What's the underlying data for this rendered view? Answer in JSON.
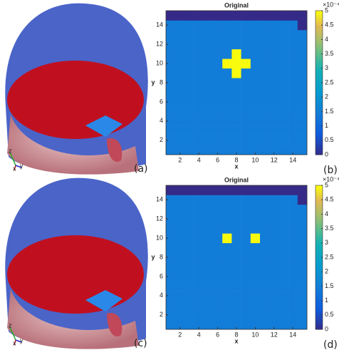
{
  "images": [
    {
      "panel_label": "(a)",
      "axis_letters": [
        "z",
        "x",
        "y"
      ]
    },
    {
      "panel_label": "(c)",
      "axis_letters": [
        "z",
        "x",
        "y"
      ]
    }
  ],
  "chart_data": [
    {
      "type": "heatmap",
      "title": "Original",
      "x_label": "x",
      "y_label": "y",
      "panel_label": "(b)",
      "colormap": "parula",
      "xlim": [
        0.5,
        15.5
      ],
      "ylim": [
        0.5,
        15.5
      ],
      "xticks": [
        2,
        4,
        6,
        8,
        10,
        12,
        14
      ],
      "yticks": [
        2,
        4,
        6,
        8,
        10,
        12,
        14
      ],
      "clim": [
        0,
        5
      ],
      "colorbar_ticks": [
        0,
        0.5,
        1,
        1.5,
        2,
        2.5,
        3,
        3.5,
        4,
        4.5,
        5
      ],
      "colorbar_label": "×10⁻⁴",
      "z": [
        [
          1.5,
          1.5,
          1.5,
          1.5,
          1.5,
          1.5,
          1.5,
          1.5,
          1.5,
          1.5,
          1.5,
          1.5,
          1.5,
          1.5,
          1.5
        ],
        [
          1.5,
          1.5,
          1.5,
          1.5,
          1.5,
          1.5,
          1.5,
          1.5,
          1.5,
          1.5,
          1.5,
          1.5,
          1.5,
          1.5,
          1.5
        ],
        [
          1.5,
          1.5,
          1.5,
          1.5,
          1.5,
          1.5,
          1.5,
          1.5,
          1.5,
          1.5,
          1.5,
          1.5,
          1.5,
          1.5,
          1.5
        ],
        [
          1.5,
          1.5,
          1.5,
          1.5,
          1.5,
          1.5,
          1.5,
          1.5,
          1.5,
          1.5,
          1.5,
          1.5,
          1.5,
          1.5,
          1.5
        ],
        [
          1.5,
          1.5,
          1.5,
          1.5,
          1.5,
          1.5,
          1.5,
          1.5,
          1.5,
          1.5,
          1.5,
          1.5,
          1.5,
          1.5,
          1.5
        ],
        [
          1.5,
          1.5,
          1.5,
          1.5,
          1.5,
          1.5,
          1.5,
          1.5,
          1.5,
          1.5,
          1.5,
          1.5,
          1.5,
          1.5,
          1.5
        ],
        [
          1.5,
          1.5,
          1.5,
          1.5,
          1.5,
          1.5,
          1.5,
          1.5,
          1.5,
          1.5,
          1.5,
          1.5,
          1.5,
          1.5,
          1.5
        ],
        [
          1.5,
          1.5,
          1.5,
          1.5,
          1.5,
          1.5,
          1.5,
          1.5,
          1.5,
          1.5,
          1.5,
          1.5,
          1.5,
          1.5,
          1.5
        ],
        [
          1.5,
          1.5,
          1.5,
          1.5,
          1.5,
          1.5,
          1.5,
          5,
          1.5,
          1.5,
          1.5,
          1.5,
          1.5,
          1.5,
          1.5
        ],
        [
          1.5,
          1.5,
          1.5,
          1.5,
          1.5,
          1.5,
          5,
          5,
          5,
          1.5,
          1.5,
          1.5,
          1.5,
          1.5,
          1.5
        ],
        [
          1.5,
          1.5,
          1.5,
          1.5,
          1.5,
          1.5,
          1.5,
          5,
          1.5,
          1.5,
          1.5,
          1.5,
          1.5,
          1.5,
          1.5
        ],
        [
          1.5,
          1.5,
          1.5,
          1.5,
          1.5,
          1.5,
          1.5,
          1.5,
          1.5,
          1.5,
          1.5,
          1.5,
          1.5,
          1.5,
          1.5
        ],
        [
          1.5,
          1.5,
          1.5,
          1.5,
          1.5,
          1.5,
          1.5,
          1.5,
          1.5,
          1.5,
          1.5,
          1.5,
          1.5,
          1.5,
          1.5
        ],
        [
          1.5,
          1.5,
          1.5,
          1.5,
          1.5,
          1.5,
          1.5,
          1.5,
          1.5,
          1.5,
          1.5,
          1.5,
          1.5,
          1.5,
          0
        ],
        [
          0,
          0,
          0,
          0,
          0,
          0,
          0,
          0,
          0,
          0,
          0,
          0,
          0,
          0,
          0
        ]
      ]
    },
    {
      "type": "heatmap",
      "title": "Original",
      "x_label": "x",
      "y_label": "y",
      "panel_label": "(d)",
      "colormap": "parula",
      "xlim": [
        0.5,
        15.5
      ],
      "ylim": [
        0.5,
        15.5
      ],
      "xticks": [
        2,
        4,
        6,
        8,
        10,
        12,
        14
      ],
      "yticks": [
        2,
        4,
        6,
        8,
        10,
        12,
        14
      ],
      "clim": [
        0,
        5
      ],
      "colorbar_ticks": [
        0,
        0.5,
        1,
        1.5,
        2,
        2.5,
        3,
        3.5,
        4,
        4.5,
        5
      ],
      "colorbar_label": "×10⁻⁴",
      "z": [
        [
          1.5,
          1.5,
          1.5,
          1.5,
          1.5,
          1.5,
          1.5,
          1.5,
          1.5,
          1.5,
          1.5,
          1.5,
          1.5,
          1.5,
          1.5
        ],
        [
          1.5,
          1.5,
          1.5,
          1.5,
          1.5,
          1.5,
          1.5,
          1.5,
          1.5,
          1.5,
          1.5,
          1.5,
          1.5,
          1.5,
          1.5
        ],
        [
          1.5,
          1.5,
          1.5,
          1.5,
          1.5,
          1.5,
          1.5,
          1.5,
          1.5,
          1.5,
          1.5,
          1.5,
          1.5,
          1.5,
          1.5
        ],
        [
          1.5,
          1.5,
          1.5,
          1.5,
          1.5,
          1.5,
          1.5,
          1.5,
          1.5,
          1.5,
          1.5,
          1.5,
          1.5,
          1.5,
          1.5
        ],
        [
          1.5,
          1.5,
          1.5,
          1.5,
          1.5,
          1.5,
          1.5,
          1.5,
          1.5,
          1.5,
          1.5,
          1.5,
          1.5,
          1.5,
          1.5
        ],
        [
          1.5,
          1.5,
          1.5,
          1.5,
          1.5,
          1.5,
          1.5,
          1.5,
          1.5,
          1.5,
          1.5,
          1.5,
          1.5,
          1.5,
          1.5
        ],
        [
          1.5,
          1.5,
          1.5,
          1.5,
          1.5,
          1.5,
          1.5,
          1.5,
          1.5,
          1.5,
          1.5,
          1.5,
          1.5,
          1.5,
          1.5
        ],
        [
          1.5,
          1.5,
          1.5,
          1.5,
          1.5,
          1.5,
          1.5,
          1.5,
          1.5,
          1.5,
          1.5,
          1.5,
          1.5,
          1.5,
          1.5
        ],
        [
          1.5,
          1.5,
          1.5,
          1.5,
          1.5,
          1.5,
          1.5,
          1.5,
          1.5,
          1.5,
          1.5,
          1.5,
          1.5,
          1.5,
          1.5
        ],
        [
          1.5,
          1.5,
          1.5,
          1.5,
          1.5,
          1.5,
          5,
          1.5,
          1.5,
          5,
          1.5,
          1.5,
          1.5,
          1.5,
          1.5
        ],
        [
          1.5,
          1.5,
          1.5,
          1.5,
          1.5,
          1.5,
          1.5,
          1.5,
          1.5,
          1.5,
          1.5,
          1.5,
          1.5,
          1.5,
          1.5
        ],
        [
          1.5,
          1.5,
          1.5,
          1.5,
          1.5,
          1.5,
          1.5,
          1.5,
          1.5,
          1.5,
          1.5,
          1.5,
          1.5,
          1.5,
          1.5
        ],
        [
          1.5,
          1.5,
          1.5,
          1.5,
          1.5,
          1.5,
          1.5,
          1.5,
          1.5,
          1.5,
          1.5,
          1.5,
          1.5,
          1.5,
          1.5
        ],
        [
          1.5,
          1.5,
          1.5,
          1.5,
          1.5,
          1.5,
          1.5,
          1.5,
          1.5,
          1.5,
          1.5,
          1.5,
          1.5,
          1.5,
          0
        ],
        [
          0,
          0,
          0,
          0,
          0,
          0,
          0,
          0,
          0,
          0,
          0,
          0,
          0,
          0,
          0
        ]
      ]
    }
  ]
}
